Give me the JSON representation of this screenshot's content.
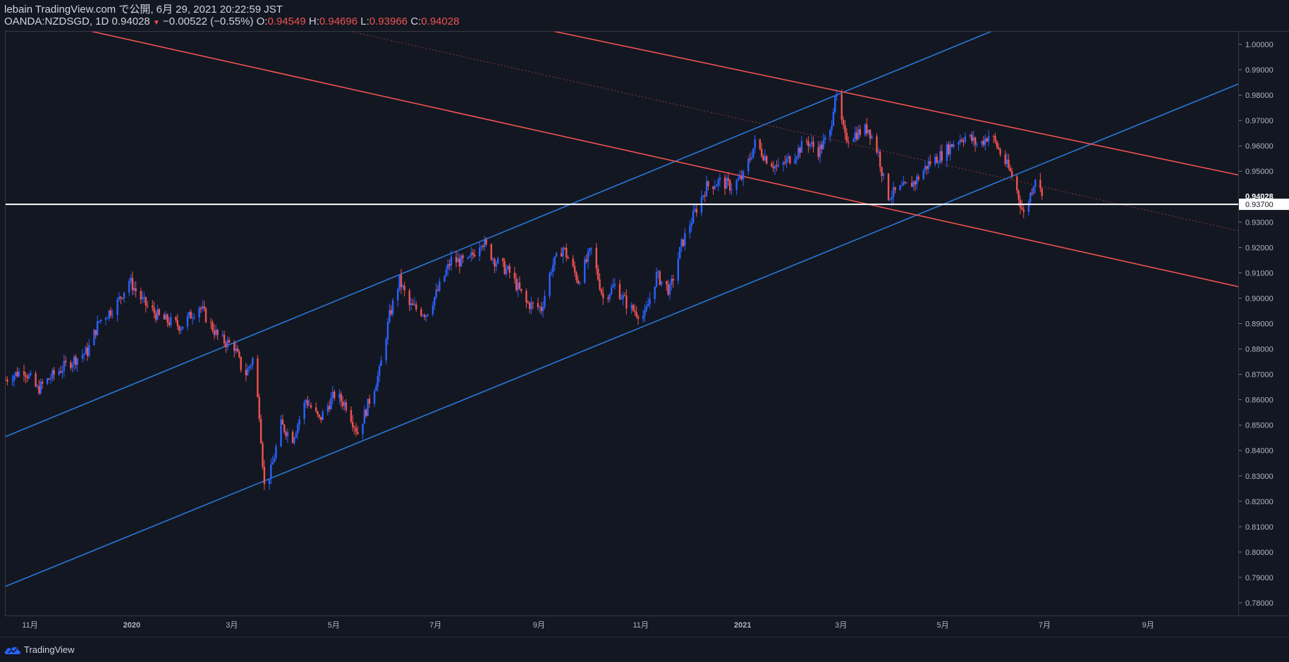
{
  "header": {
    "publish_line": "lebain TradingView.com で公開, 6月 29, 2021 20:22:59 JST",
    "symbol_prefix": "OANDA:NZDSGD, 1D 0.94028",
    "change_arrow": "▼",
    "change_text": "−0.00522 (−0.55%)",
    "o_label": "O:",
    "o_value": "0.94549",
    "h_label": "H:",
    "h_value": "0.94696",
    "l_label": "L:",
    "l_value": "0.93966",
    "c_label": "C:",
    "c_value": "0.94028"
  },
  "price_axis": {
    "ticks": [
      "1.00000",
      "0.99000",
      "0.98000",
      "0.97000",
      "0.96000",
      "0.95000",
      "0.94000",
      "0.93000",
      "0.92000",
      "0.91000",
      "0.90000",
      "0.89000",
      "0.88000",
      "0.87000",
      "0.86000",
      "0.85000",
      "0.84000",
      "0.83000",
      "0.82000",
      "0.81000",
      "0.80000",
      "0.79000",
      "0.78000"
    ],
    "last_price_label": "0.94028",
    "hline_price_label": "0.93700"
  },
  "time_axis": {
    "labels": [
      "11月",
      "2020",
      "3月",
      "5月",
      "7月",
      "9月",
      "11月",
      "2021",
      "3月",
      "5月",
      "7月",
      "9月"
    ]
  },
  "footer": {
    "brand": "TradingView"
  },
  "chart_data": {
    "type": "candlestick",
    "symbol": "OANDA:NZDSGD",
    "interval": "1D",
    "ylim": [
      0.775,
      1.005
    ],
    "x_range": [
      "2019-10-17",
      "2021-10-25"
    ],
    "grid": false,
    "colors": {
      "up": "#2962ff",
      "down": "#ef5350",
      "background": "#131722",
      "hline": "#ffffff"
    },
    "horizontal_line": 0.937,
    "last_close": 0.94028,
    "path": [
      [
        "2019-10-17",
        0.868
      ],
      [
        "2019-10-28",
        0.872
      ],
      [
        "2019-11-05",
        0.864
      ],
      [
        "2019-11-15",
        0.87
      ],
      [
        "2019-11-25",
        0.875
      ],
      [
        "2019-12-05",
        0.879
      ],
      [
        "2019-12-12",
        0.891
      ],
      [
        "2019-12-22",
        0.897
      ],
      [
        "2019-12-30",
        0.907
      ],
      [
        "2020-01-08",
        0.898
      ],
      [
        "2020-01-18",
        0.892
      ],
      [
        "2020-01-30",
        0.889
      ],
      [
        "2020-02-10",
        0.897
      ],
      [
        "2020-02-22",
        0.884
      ],
      [
        "2020-03-02",
        0.881
      ],
      [
        "2020-03-08",
        0.869
      ],
      [
        "2020-03-13",
        0.876
      ],
      [
        "2020-03-17",
        0.855
      ],
      [
        "2020-03-20",
        0.826
      ],
      [
        "2020-03-24",
        0.832
      ],
      [
        "2020-03-30",
        0.85
      ],
      [
        "2020-04-06",
        0.845
      ],
      [
        "2020-04-14",
        0.86
      ],
      [
        "2020-04-22",
        0.852
      ],
      [
        "2020-05-01",
        0.862
      ],
      [
        "2020-05-08",
        0.858
      ],
      [
        "2020-05-15",
        0.847
      ],
      [
        "2020-05-20",
        0.856
      ],
      [
        "2020-05-28",
        0.871
      ],
      [
        "2020-06-03",
        0.893
      ],
      [
        "2020-06-09",
        0.907
      ],
      [
        "2020-06-15",
        0.897
      ],
      [
        "2020-06-25",
        0.894
      ],
      [
        "2020-07-02",
        0.903
      ],
      [
        "2020-07-10",
        0.915
      ],
      [
        "2020-07-20",
        0.914
      ],
      [
        "2020-07-28",
        0.923
      ],
      [
        "2020-08-05",
        0.915
      ],
      [
        "2020-08-14",
        0.91
      ],
      [
        "2020-08-24",
        0.898
      ],
      [
        "2020-09-02",
        0.896
      ],
      [
        "2020-09-08",
        0.912
      ],
      [
        "2020-09-15",
        0.92
      ],
      [
        "2020-09-24",
        0.907
      ],
      [
        "2020-10-02",
        0.919
      ],
      [
        "2020-10-09",
        0.9
      ],
      [
        "2020-10-16",
        0.905
      ],
      [
        "2020-10-25",
        0.896
      ],
      [
        "2020-11-03",
        0.893
      ],
      [
        "2020-11-10",
        0.909
      ],
      [
        "2020-11-18",
        0.903
      ],
      [
        "2020-11-25",
        0.921
      ],
      [
        "2020-12-03",
        0.934
      ],
      [
        "2020-12-10",
        0.944
      ],
      [
        "2020-12-18",
        0.946
      ],
      [
        "2020-12-25",
        0.944
      ],
      [
        "2021-01-01",
        0.948
      ],
      [
        "2021-01-08",
        0.961
      ],
      [
        "2021-01-15",
        0.955
      ],
      [
        "2021-01-22",
        0.951
      ],
      [
        "2021-02-01",
        0.957
      ],
      [
        "2021-02-08",
        0.962
      ],
      [
        "2021-02-15",
        0.958
      ],
      [
        "2021-02-22",
        0.965
      ],
      [
        "2021-02-25",
        0.981
      ],
      [
        "2021-03-03",
        0.963
      ],
      [
        "2021-03-10",
        0.965
      ],
      [
        "2021-03-17",
        0.967
      ],
      [
        "2021-03-23",
        0.957
      ],
      [
        "2021-03-28",
        0.94
      ],
      [
        "2021-04-06",
        0.943
      ],
      [
        "2021-04-14",
        0.946
      ],
      [
        "2021-04-22",
        0.953
      ],
      [
        "2021-05-01",
        0.957
      ],
      [
        "2021-05-08",
        0.962
      ],
      [
        "2021-05-15",
        0.964
      ],
      [
        "2021-05-22",
        0.96
      ],
      [
        "2021-05-29",
        0.965
      ],
      [
        "2021-06-05",
        0.956
      ],
      [
        "2021-06-12",
        0.947
      ],
      [
        "2021-06-18",
        0.933
      ],
      [
        "2021-06-22",
        0.941
      ],
      [
        "2021-06-25",
        0.948
      ],
      [
        "2021-06-29",
        0.94028
      ]
    ],
    "trendlines": [
      {
        "name": "upper-blue",
        "color": "#2a78d6",
        "points": [
          [
            "2019-10-17",
            0.8455
          ],
          [
            "2021-05-31",
            1.0055
          ]
        ]
      },
      {
        "name": "lower-blue",
        "color": "#2a78d6",
        "points": [
          [
            "2019-10-17",
            0.7865
          ],
          [
            "2021-10-25",
            0.9845
          ]
        ]
      },
      {
        "name": "upper-red",
        "color": "#f0534f",
        "points": [
          [
            "2020-09-07",
            1.0055
          ],
          [
            "2021-10-25",
            0.9485
          ]
        ]
      },
      {
        "name": "middle-red",
        "color": "#f0534f",
        "points": [
          [
            "2019-12-05",
            1.0055
          ],
          [
            "2021-10-25",
            0.9045
          ]
        ]
      },
      {
        "name": "dotted-red",
        "color": "#8a3838",
        "dashed": true,
        "points": [
          [
            "2020-05-08",
            1.0055
          ],
          [
            "2021-10-25",
            0.9265
          ]
        ]
      }
    ]
  }
}
